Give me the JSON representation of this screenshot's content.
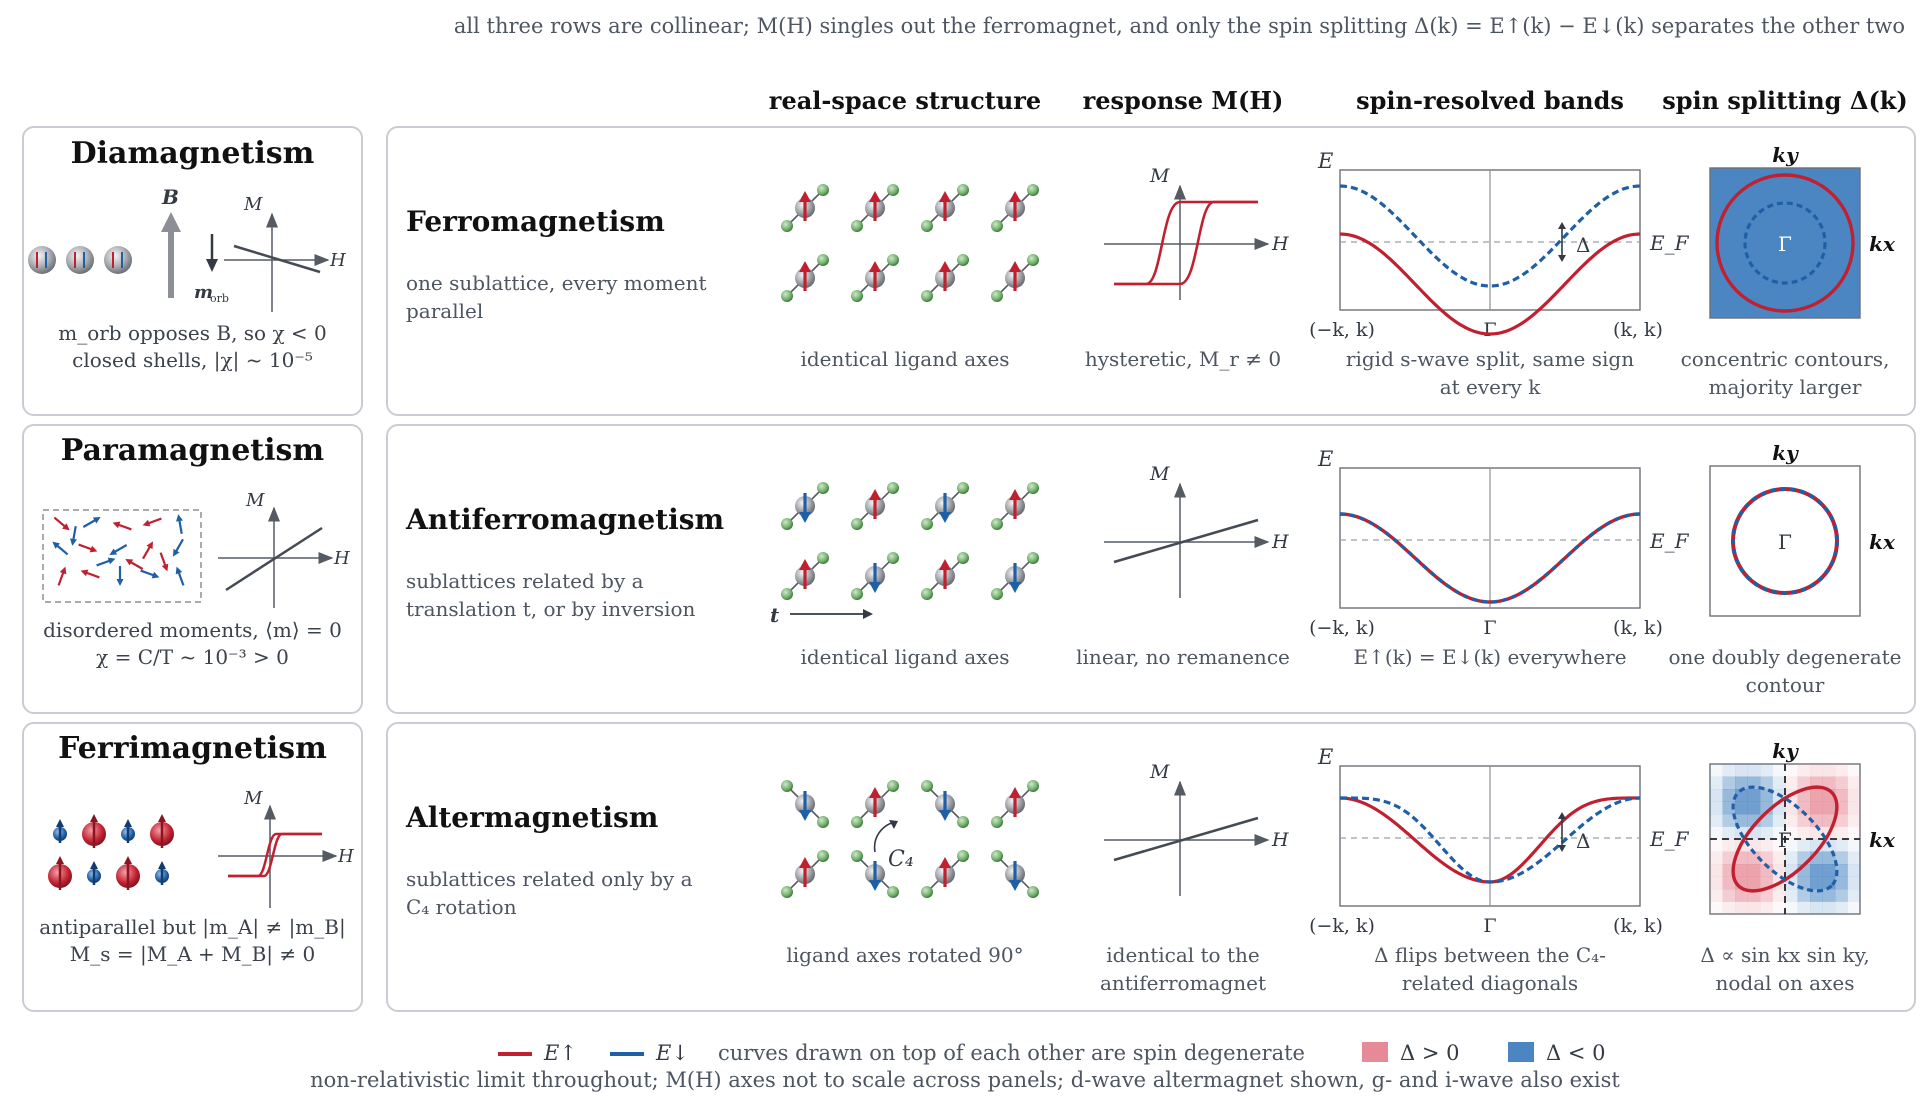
{
  "top_caption": "all three rows are collinear; M(H) singles out the ferromagnet, and only the spin splitting Δ(k) = E↑(k) − E↓(k) separates the other two",
  "column_headers": {
    "structure": "real-space structure",
    "response": "response M(H)",
    "bands": "spin-resolved bands",
    "splitting": "spin splitting Δ(k)"
  },
  "left_panels": [
    {
      "title": "Diamagnetism",
      "caption1": "m_orb opposes B, so χ < 0",
      "caption2": "closed shells, |χ| ~ 10⁻⁵",
      "label_B": "B",
      "label_m": "m",
      "label_m_sub": "orb"
    },
    {
      "title": "Paramagnetism",
      "caption1": "disordered moments, ⟨m⟩ = 0",
      "caption2": "χ = C/T ~ 10⁻³ > 0"
    },
    {
      "title": "Ferrimagnetism",
      "caption1": "antiparallel but |m_A| ≠ |m_B|",
      "caption2": "M_s = |M_A + M_B| ≠ 0"
    }
  ],
  "rows": [
    {
      "title": "Ferromagnetism",
      "desc1": "one sublattice, every moment",
      "desc2": "parallel",
      "structure_caption": "identical ligand axes",
      "response_caption1": "hysteretic, M_r ≠ 0",
      "response_caption2": "",
      "bands_caption1": "rigid s-wave split, same sign",
      "bands_caption2": "at every k",
      "split_caption1": "concentric contours,",
      "split_caption2": "majority larger"
    },
    {
      "title": "Antiferromagnetism",
      "desc1": "sublattices related by a",
      "desc2": "translation t, or by inversion",
      "structure_caption": "identical ligand axes",
      "response_caption1": "linear, no remanence",
      "response_caption2": "",
      "bands_caption1": "E↑(k) = E↓(k) everywhere",
      "bands_caption2": "",
      "split_caption1": "one doubly degenerate",
      "split_caption2": "contour",
      "translation_label": "t"
    },
    {
      "title": "Altermagnetism",
      "desc1": "sublattices related only by a",
      "desc2": "C₄ rotation",
      "structure_caption": "ligand axes rotated 90°",
      "response_caption1": "identical to the",
      "response_caption2": "antiferromagnet",
      "bands_caption1": "Δ flips between the C₄-",
      "bands_caption2": "related diagonals",
      "split_caption1": "Δ ∝ sin kx sin ky,",
      "split_caption2": "nodal on axes",
      "rotation_label": "C₄"
    }
  ],
  "axis_labels": {
    "M": "M",
    "H": "H",
    "E": "E",
    "EF": "E_F",
    "kmin": "(−k, k)",
    "gamma": "Γ",
    "kmax": "(k, k)",
    "kx": "kx",
    "ky": "ky",
    "delta": "Δ"
  },
  "legend": {
    "up": "E↑",
    "down": "E↓",
    "degenerate_note": "curves drawn on top of each other are spin degenerate",
    "pos": "Δ > 0",
    "neg": "Δ < 0"
  },
  "footer": "non-relativistic limit throughout; M(H) axes not to scale across panels; d-wave altermagnet shown, g- and i-wave also exist",
  "colors": {
    "up": "#c0202f",
    "down": "#1f5fa6",
    "ligand": "#6fae6a",
    "atom": "#9a9da2",
    "axis": "#555b63",
    "neg_fill": "#4b86c3",
    "pos_fill": "#e58a96"
  }
}
